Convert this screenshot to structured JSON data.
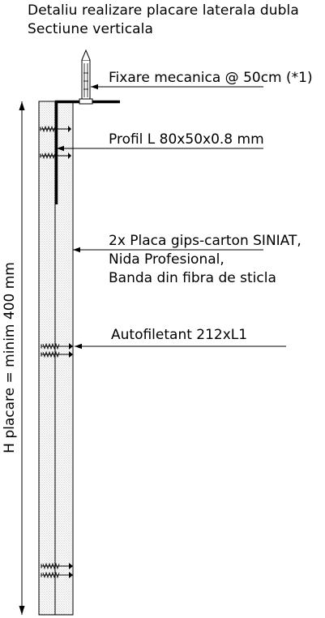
{
  "title": {
    "line1": "Detaliu realizare placare laterala dubla",
    "line2": "Sectiune verticala"
  },
  "callouts": {
    "fixing": "Fixare mecanica @ 50cm (*1)",
    "profile": "Profil L 80x50x0.8 mm",
    "boards_line1": "2x Placa gips-carton SINIAT,",
    "boards_line2": "Nida Profesional,",
    "boards_line3": "Banda din fibra de sticla",
    "screw": "Autofiletant 212xL1"
  },
  "dimension": {
    "label": "H placare = minim 400 mm"
  }
}
